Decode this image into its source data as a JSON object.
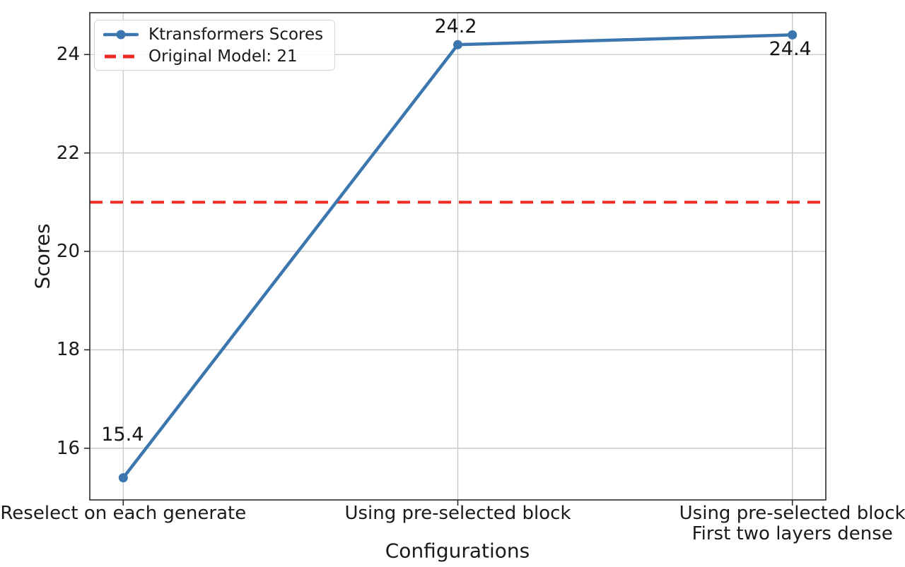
{
  "chart_data": {
    "type": "line",
    "title": "",
    "xlabel": "Configurations",
    "ylabel": "Scores",
    "categories": [
      "Reselect on each generate",
      "Using pre-selected block",
      "Using pre-selected block\nFirst two layers dense"
    ],
    "series": [
      {
        "name": "Ktransformers Scores",
        "values": [
          15.4,
          24.2,
          24.4
        ]
      }
    ],
    "point_labels": [
      "15.4",
      "24.2",
      "24.4"
    ],
    "reference_line": {
      "label": "Original Model: 21",
      "value": 21
    },
    "legend": [
      "Ktransformers Scores",
      "Original Model: 21"
    ],
    "legend_position": "upper-left",
    "yticks": [
      16,
      18,
      20,
      22,
      24
    ],
    "ylim": [
      14.95,
      24.85
    ],
    "xlim": [
      -0.1,
      2.1
    ],
    "grid": true
  },
  "colors": {
    "series_blue": "#3b76af",
    "reference_red": "#ed2b23",
    "gridline": "#c6c6c6",
    "spine": "#2a2a2a",
    "text": "#1a1a1a"
  }
}
